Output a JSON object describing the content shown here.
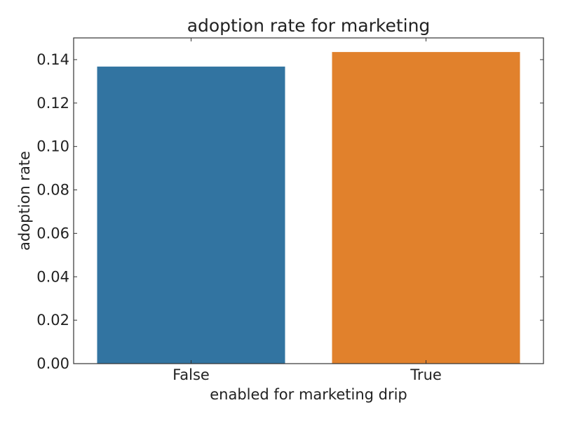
{
  "chart_data": {
    "type": "bar",
    "title": "adoption rate for marketing",
    "xlabel": "enabled for marketing drip",
    "ylabel": "adoption rate",
    "categories": [
      "False",
      "True"
    ],
    "values": [
      0.1368,
      0.1435
    ],
    "colors": [
      "#3274a1",
      "#e1812c"
    ],
    "ylim": [
      0,
      0.15
    ],
    "yticks": [
      0.0,
      0.02,
      0.04,
      0.06,
      0.08,
      0.1,
      0.12,
      0.14
    ],
    "ytick_labels": [
      "0.00",
      "0.02",
      "0.04",
      "0.06",
      "0.08",
      "0.10",
      "0.12",
      "0.14"
    ],
    "grid": false,
    "legend": false
  }
}
